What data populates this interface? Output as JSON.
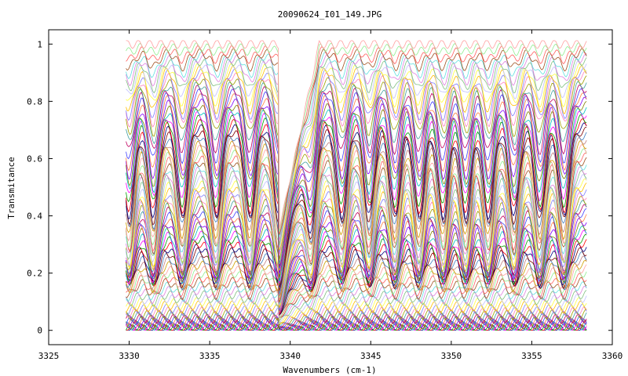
{
  "chart_data": {
    "type": "line",
    "title": "20090624_I01_149.JPG",
    "xlabel": "Wavenumbers (cm-1)",
    "ylabel": "Transmitance",
    "xlim": [
      3325,
      3360
    ],
    "ylim": [
      -0.05,
      1.05
    ],
    "x_ticks": [
      "3325",
      "3330",
      "3335",
      "3340",
      "3345",
      "3350",
      "3355",
      "3360"
    ],
    "y_ticks": [
      "0",
      "0.2",
      "0.4",
      "0.6",
      "0.8",
      "1"
    ],
    "x_tick_values": [
      3325,
      3330,
      3335,
      3340,
      3345,
      3350,
      3355,
      3360
    ],
    "y_tick_values": [
      0,
      0.2,
      0.4,
      0.6,
      0.8,
      1
    ],
    "x_range": [
      3329.8,
      3358.4
    ],
    "absorption_band_centers": [
      3330.0,
      3331.5,
      3333.3,
      3335.4,
      3337.5,
      3339.3,
      3341.3,
      3343.2,
      3344.9,
      3346.5,
      3348.0,
      3349.5,
      3350.9,
      3352.3,
      3353.9,
      3355.5,
      3357.0
    ],
    "edge_position": 3339.3,
    "series_count": 80,
    "series_baselines": [
      0.002,
      0.005,
      0.008,
      0.012,
      0.016,
      0.02,
      0.025,
      0.03,
      0.036,
      0.042,
      0.05,
      0.058,
      0.067,
      0.077,
      0.088,
      0.1,
      0.112,
      0.125,
      0.14,
      0.155,
      0.17,
      0.185,
      0.2,
      0.215,
      0.23,
      0.245,
      0.26,
      0.275,
      0.29,
      0.305,
      0.32,
      0.335,
      0.35,
      0.365,
      0.38,
      0.395,
      0.41,
      0.425,
      0.44,
      0.455,
      0.47,
      0.485,
      0.5,
      0.515,
      0.53,
      0.545,
      0.56,
      0.575,
      0.59,
      0.605,
      0.62,
      0.635,
      0.65,
      0.665,
      0.68,
      0.695,
      0.71,
      0.725,
      0.74,
      0.755,
      0.77,
      0.785,
      0.8,
      0.815,
      0.83,
      0.845,
      0.86,
      0.875,
      0.89,
      0.9,
      0.91,
      0.92,
      0.93,
      0.94,
      0.95,
      0.96,
      0.97,
      0.98,
      0.99,
      1.0
    ],
    "palette": [
      "#000080",
      "#ff0000",
      "#00a000",
      "#ff00ff",
      "#00c0c0",
      "#808000",
      "#8000ff",
      "#ff8040",
      "#4040ff",
      "#c00060",
      "#40a0a0",
      "#a0a000",
      "#ff80c0",
      "#8080ff",
      "#ffc000",
      "#ffff40",
      "#c0c0ff",
      "#80c080",
      "#e080e0",
      "#60e0e0",
      "#a05020",
      "#ff6060",
      "#90ee90",
      "#ffa0a0",
      "#d0a000",
      "#c08080",
      "#4080c0",
      "#800000"
    ],
    "grid": false,
    "legend": "none"
  }
}
